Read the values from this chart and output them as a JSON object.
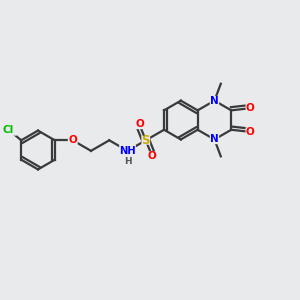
{
  "bg_color": "#e8eaec",
  "bond_color": "#3a3a3a",
  "bond_width": 1.6,
  "atom_colors": {
    "Cl": "#00bb00",
    "O": "#ff0000",
    "N": "#0000ff",
    "S": "#ccaa00",
    "H": "#555555",
    "C": "#3a3a3a"
  },
  "figsize": [
    3.0,
    3.0
  ],
  "dpi": 100
}
